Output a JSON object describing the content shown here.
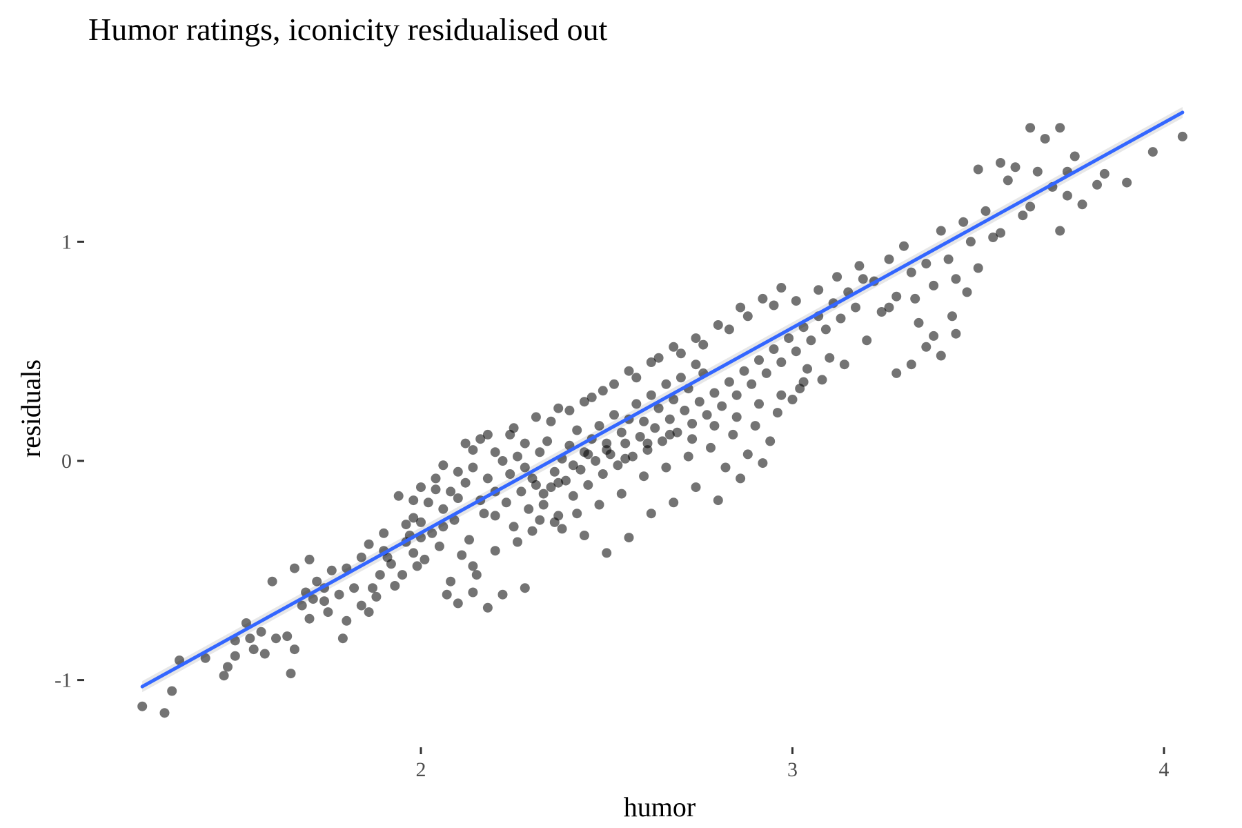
{
  "chart_data": {
    "type": "scatter",
    "title": "Humor ratings, iconicity residualised out",
    "xlabel": "humor",
    "ylabel": "residuals",
    "xlim": [
      1.22,
      4.08
    ],
    "ylim": [
      -1.25,
      1.7
    ],
    "x_ticks": [
      2,
      3,
      4
    ],
    "y_ticks": [
      -1,
      0,
      1
    ],
    "grid": false,
    "legend": "none",
    "point_color": "#000000",
    "point_opacity": 0.55,
    "line_color": "#3366ff",
    "band_color": "#c9c9c9",
    "trend_line": {
      "method": "linear",
      "x": [
        1.25,
        4.05
      ],
      "y": [
        -1.03,
        1.59
      ]
    },
    "series": [
      {
        "points": [
          [
            1.25,
            -1.12
          ],
          [
            1.31,
            -1.15
          ],
          [
            1.33,
            -1.05
          ],
          [
            1.35,
            -0.91
          ],
          [
            1.42,
            -0.9
          ],
          [
            1.47,
            -0.98
          ],
          [
            1.48,
            -0.94
          ],
          [
            1.5,
            -0.89
          ],
          [
            1.5,
            -0.82
          ],
          [
            1.53,
            -0.74
          ],
          [
            1.54,
            -0.81
          ],
          [
            1.55,
            -0.86
          ],
          [
            1.57,
            -0.78
          ],
          [
            1.58,
            -0.88
          ],
          [
            1.61,
            -0.81
          ],
          [
            1.64,
            -0.8
          ],
          [
            1.65,
            -0.97
          ],
          [
            1.66,
            -0.86
          ],
          [
            1.68,
            -0.66
          ],
          [
            1.69,
            -0.6
          ],
          [
            1.7,
            -0.72
          ],
          [
            1.71,
            -0.63
          ],
          [
            1.72,
            -0.55
          ],
          [
            1.74,
            -0.64
          ],
          [
            1.75,
            -0.69
          ],
          [
            1.76,
            -0.5
          ],
          [
            1.78,
            -0.61
          ],
          [
            1.79,
            -0.81
          ],
          [
            1.8,
            -0.73
          ],
          [
            1.82,
            -0.58
          ],
          [
            1.84,
            -0.66
          ],
          [
            1.86,
            -0.69
          ],
          [
            1.87,
            -0.58
          ],
          [
            1.88,
            -0.62
          ],
          [
            1.9,
            -0.41
          ],
          [
            1.92,
            -0.47
          ],
          [
            1.93,
            -0.57
          ],
          [
            1.95,
            -0.52
          ],
          [
            1.96,
            -0.37
          ],
          [
            1.98,
            -0.42
          ],
          [
            2.0,
            -0.28
          ],
          [
            2.01,
            -0.45
          ],
          [
            2.03,
            -0.33
          ],
          [
            2.05,
            -0.39
          ],
          [
            2.07,
            -0.61
          ],
          [
            2.09,
            -0.27
          ],
          [
            2.11,
            -0.43
          ],
          [
            2.13,
            -0.36
          ],
          [
            2.15,
            -0.52
          ],
          [
            2.17,
            -0.24
          ],
          [
            1.86,
            -0.38
          ],
          [
            1.89,
            -0.52
          ],
          [
            1.91,
            -0.44
          ],
          [
            1.97,
            -0.34
          ],
          [
            1.99,
            -0.48
          ],
          [
            1.94,
            -0.16
          ],
          [
            1.98,
            -0.26
          ],
          [
            2.02,
            -0.19
          ],
          [
            2.04,
            -0.13
          ],
          [
            2.06,
            -0.22
          ],
          [
            2.08,
            -0.14
          ],
          [
            2.1,
            -0.05
          ],
          [
            2.12,
            -0.1
          ],
          [
            2.14,
            -0.03
          ],
          [
            2.16,
            -0.18
          ],
          [
            2.18,
            -0.08
          ],
          [
            2.2,
            -0.14
          ],
          [
            2.22,
            0.0
          ],
          [
            2.24,
            -0.06
          ],
          [
            2.26,
            0.02
          ],
          [
            2.28,
            -0.03
          ],
          [
            2.3,
            -0.08
          ],
          [
            2.32,
            0.04
          ],
          [
            2.34,
            0.09
          ],
          [
            2.36,
            -0.05
          ],
          [
            2.38,
            0.01
          ],
          [
            2.4,
            0.07
          ],
          [
            2.42,
            0.14
          ],
          [
            2.44,
            0.04
          ],
          [
            2.46,
            0.1
          ],
          [
            2.48,
            0.16
          ],
          [
            2.5,
            0.08
          ],
          [
            2.52,
            0.21
          ],
          [
            2.54,
            0.13
          ],
          [
            2.56,
            0.19
          ],
          [
            2.58,
            0.26
          ],
          [
            2.6,
            0.18
          ],
          [
            2.62,
            0.3
          ],
          [
            2.64,
            0.24
          ],
          [
            2.66,
            0.35
          ],
          [
            2.68,
            0.28
          ],
          [
            2.7,
            0.38
          ],
          [
            2.72,
            0.33
          ],
          [
            2.74,
            0.44
          ],
          [
            2.76,
            0.4
          ],
          [
            2.2,
            -0.25
          ],
          [
            2.23,
            -0.19
          ],
          [
            2.25,
            -0.3
          ],
          [
            2.27,
            -0.14
          ],
          [
            2.29,
            -0.22
          ],
          [
            2.31,
            -0.11
          ],
          [
            2.33,
            -0.2
          ],
          [
            2.35,
            -0.12
          ],
          [
            2.37,
            -0.25
          ],
          [
            2.39,
            -0.09
          ],
          [
            2.41,
            -0.16
          ],
          [
            2.43,
            -0.04
          ],
          [
            2.45,
            -0.11
          ],
          [
            2.47,
            0.0
          ],
          [
            2.49,
            -0.06
          ],
          [
            2.51,
            0.03
          ],
          [
            2.53,
            -0.02
          ],
          [
            2.55,
            0.08
          ],
          [
            2.57,
            0.02
          ],
          [
            2.59,
            0.11
          ],
          [
            2.61,
            0.05
          ],
          [
            2.63,
            0.15
          ],
          [
            2.65,
            0.09
          ],
          [
            2.67,
            0.19
          ],
          [
            2.69,
            0.13
          ],
          [
            2.71,
            0.23
          ],
          [
            2.73,
            0.17
          ],
          [
            2.75,
            0.27
          ],
          [
            2.77,
            0.21
          ],
          [
            2.79,
            0.31
          ],
          [
            2.81,
            0.25
          ],
          [
            2.83,
            0.36
          ],
          [
            2.85,
            0.3
          ],
          [
            2.87,
            0.41
          ],
          [
            2.89,
            0.35
          ],
          [
            2.91,
            0.46
          ],
          [
            2.93,
            0.4
          ],
          [
            2.95,
            0.51
          ],
          [
            2.97,
            0.45
          ],
          [
            2.99,
            0.56
          ],
          [
            3.01,
            0.5
          ],
          [
            3.03,
            0.61
          ],
          [
            3.05,
            0.55
          ],
          [
            3.07,
            0.66
          ],
          [
            3.09,
            0.6
          ],
          [
            3.11,
            0.72
          ],
          [
            3.13,
            0.65
          ],
          [
            3.15,
            0.77
          ],
          [
            3.17,
            0.7
          ],
          [
            3.19,
            0.83
          ],
          [
            2.12,
            0.08
          ],
          [
            2.18,
            0.12
          ],
          [
            2.25,
            0.15
          ],
          [
            2.31,
            0.2
          ],
          [
            2.37,
            0.24
          ],
          [
            2.44,
            0.27
          ],
          [
            2.49,
            0.32
          ],
          [
            2.56,
            0.41
          ],
          [
            2.62,
            0.45
          ],
          [
            2.68,
            0.52
          ],
          [
            2.74,
            0.56
          ],
          [
            2.8,
            0.62
          ],
          [
            2.86,
            0.7
          ],
          [
            2.92,
            0.74
          ],
          [
            2.97,
            0.79
          ],
          [
            2.3,
            -0.32
          ],
          [
            2.36,
            -0.28
          ],
          [
            2.42,
            -0.24
          ],
          [
            2.48,
            -0.2
          ],
          [
            2.54,
            -0.15
          ],
          [
            2.6,
            -0.07
          ],
          [
            2.66,
            -0.03
          ],
          [
            2.72,
            0.02
          ],
          [
            2.78,
            0.06
          ],
          [
            2.84,
            0.12
          ],
          [
            2.9,
            0.16
          ],
          [
            2.96,
            0.22
          ],
          [
            3.02,
            0.33
          ],
          [
            3.08,
            0.37
          ],
          [
            3.14,
            0.44
          ],
          [
            2.82,
            -0.03
          ],
          [
            2.88,
            0.03
          ],
          [
            2.94,
            0.09
          ],
          [
            3.0,
            0.28
          ],
          [
            3.04,
            0.42
          ],
          [
            3.2,
            0.55
          ],
          [
            3.22,
            0.82
          ],
          [
            3.24,
            0.68
          ],
          [
            3.26,
            0.92
          ],
          [
            3.28,
            0.75
          ],
          [
            3.3,
            0.98
          ],
          [
            3.32,
            0.86
          ],
          [
            3.34,
            0.63
          ],
          [
            3.36,
            0.9
          ],
          [
            3.38,
            0.8
          ],
          [
            3.4,
            1.05
          ],
          [
            3.42,
            0.92
          ],
          [
            3.44,
            0.83
          ],
          [
            3.46,
            1.09
          ],
          [
            3.48,
            1.0
          ],
          [
            3.5,
            0.88
          ],
          [
            3.52,
            1.14
          ],
          [
            3.54,
            1.02
          ],
          [
            3.56,
            1.04
          ],
          [
            3.58,
            1.28
          ],
          [
            3.6,
            1.34
          ],
          [
            3.62,
            1.12
          ],
          [
            3.64,
            1.16
          ],
          [
            3.66,
            1.32
          ],
          [
            3.68,
            1.47
          ],
          [
            3.7,
            1.25
          ],
          [
            3.72,
            1.05
          ],
          [
            3.74,
            1.21
          ],
          [
            3.76,
            1.39
          ],
          [
            3.78,
            1.17
          ],
          [
            3.84,
            1.31
          ],
          [
            3.9,
            1.27
          ],
          [
            3.97,
            1.41
          ],
          [
            4.05,
            1.48
          ],
          [
            3.5,
            1.33
          ],
          [
            3.56,
            1.36
          ],
          [
            3.64,
            1.52
          ],
          [
            3.72,
            1.52
          ],
          [
            3.74,
            1.32
          ],
          [
            3.82,
            1.26
          ],
          [
            1.6,
            -0.55
          ],
          [
            1.66,
            -0.49
          ],
          [
            1.7,
            -0.45
          ],
          [
            1.74,
            -0.58
          ],
          [
            1.8,
            -0.49
          ],
          [
            1.84,
            -0.44
          ],
          [
            1.9,
            -0.33
          ],
          [
            1.96,
            -0.29
          ],
          [
            2.0,
            -0.35
          ],
          [
            2.06,
            -0.3
          ],
          [
            2.08,
            -0.55
          ],
          [
            2.14,
            -0.48
          ],
          [
            2.2,
            -0.41
          ],
          [
            2.26,
            -0.37
          ],
          [
            2.32,
            -0.27
          ],
          [
            2.38,
            -0.31
          ],
          [
            2.44,
            -0.34
          ],
          [
            2.5,
            -0.42
          ],
          [
            2.56,
            -0.35
          ],
          [
            2.62,
            -0.24
          ],
          [
            2.68,
            -0.19
          ],
          [
            2.74,
            -0.12
          ],
          [
            2.8,
            -0.18
          ],
          [
            2.86,
            -0.08
          ],
          [
            2.92,
            -0.01
          ],
          [
            2.18,
            -0.67
          ],
          [
            2.22,
            -0.61
          ],
          [
            2.28,
            -0.58
          ],
          [
            2.14,
            -0.6
          ],
          [
            2.1,
            -0.65
          ],
          [
            2.35,
            0.18
          ],
          [
            2.4,
            0.23
          ],
          [
            2.46,
            0.29
          ],
          [
            2.52,
            0.35
          ],
          [
            2.58,
            0.38
          ],
          [
            2.64,
            0.47
          ],
          [
            2.7,
            0.49
          ],
          [
            2.76,
            0.53
          ],
          [
            2.83,
            0.6
          ],
          [
            2.88,
            0.66
          ],
          [
            2.95,
            0.71
          ],
          [
            3.01,
            0.73
          ],
          [
            3.07,
            0.78
          ],
          [
            3.12,
            0.84
          ],
          [
            3.18,
            0.89
          ],
          [
            3.26,
            0.7
          ],
          [
            3.33,
            0.74
          ],
          [
            3.38,
            0.57
          ],
          [
            3.43,
            0.66
          ],
          [
            3.47,
            0.77
          ],
          [
            3.28,
            0.4
          ],
          [
            3.32,
            0.44
          ],
          [
            3.36,
            0.52
          ],
          [
            3.4,
            0.48
          ],
          [
            3.44,
            0.58
          ],
          [
            1.98,
            -0.18
          ],
          [
            2.0,
            -0.12
          ],
          [
            2.04,
            -0.08
          ],
          [
            2.06,
            -0.02
          ],
          [
            2.1,
            -0.17
          ],
          [
            2.14,
            0.05
          ],
          [
            2.16,
            0.1
          ],
          [
            2.2,
            0.04
          ],
          [
            2.24,
            0.12
          ],
          [
            2.28,
            0.08
          ],
          [
            2.33,
            -0.15
          ],
          [
            2.37,
            -0.1
          ],
          [
            2.41,
            -0.02
          ],
          [
            2.45,
            0.03
          ],
          [
            2.5,
            0.05
          ],
          [
            2.55,
            0.01
          ],
          [
            2.61,
            0.08
          ],
          [
            2.67,
            0.12
          ],
          [
            2.73,
            0.1
          ],
          [
            2.79,
            0.16
          ],
          [
            2.85,
            0.2
          ],
          [
            2.91,
            0.26
          ],
          [
            2.97,
            0.3
          ],
          [
            3.03,
            0.36
          ],
          [
            3.1,
            0.47
          ]
        ]
      }
    ]
  }
}
